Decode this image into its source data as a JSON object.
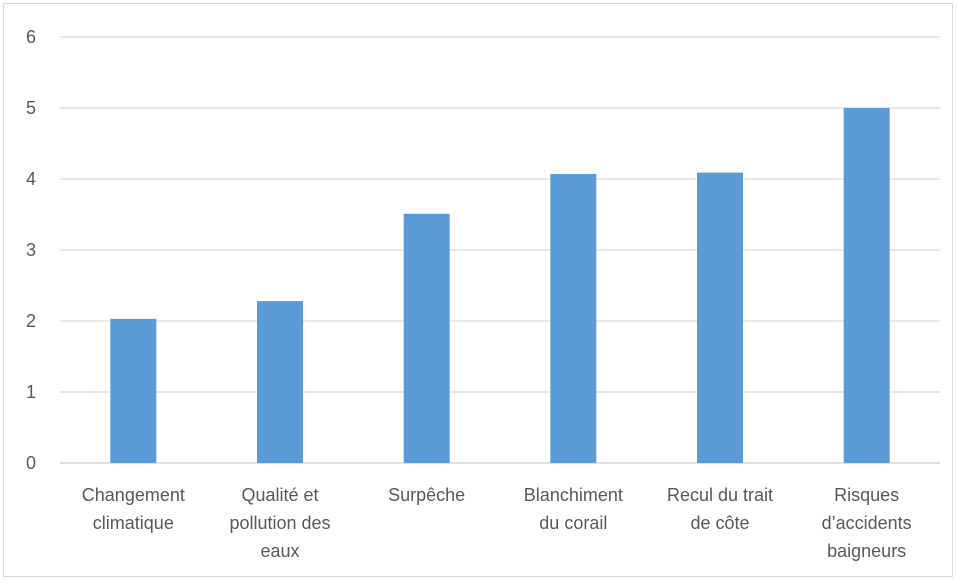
{
  "chart_data": {
    "type": "bar",
    "categories": [
      [
        "Changement",
        "climatique"
      ],
      [
        "Qualité et",
        "pollution des",
        "eaux"
      ],
      [
        "Surpêche"
      ],
      [
        "Blanchiment",
        "du corail"
      ],
      [
        "Recul du trait",
        "de côte"
      ],
      [
        "Risques",
        "d’accidents",
        "baigneurs"
      ]
    ],
    "values": [
      2.03,
      2.28,
      3.51,
      4.07,
      4.09,
      5.0
    ],
    "ylim": [
      0,
      6
    ],
    "yticks": [
      "0",
      "1",
      "2",
      "3",
      "4",
      "5",
      "6"
    ],
    "grid": true,
    "bar_color": "#5b9bd5",
    "grid_color": "#d9d9d9",
    "text_color": "#595959"
  }
}
